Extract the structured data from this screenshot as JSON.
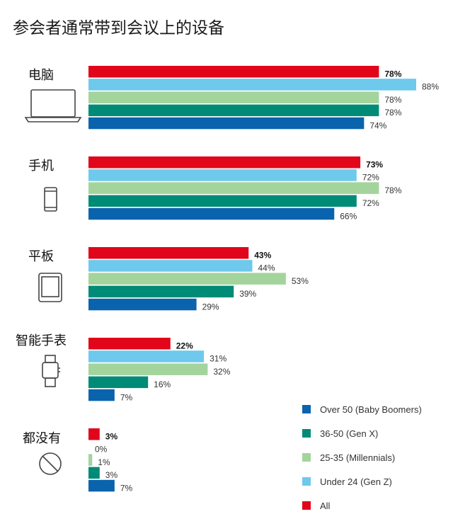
{
  "title": "参会者通常带到会议上的设备",
  "chart_data": {
    "type": "bar",
    "orientation": "horizontal",
    "title": "参会者通常带到会议上的设备",
    "categories": [
      "电脑",
      "手机",
      "平板",
      "智能手表",
      "都没有"
    ],
    "xlim": [
      0,
      100
    ],
    "grid": false,
    "legend_position": "bottom-right",
    "series": [
      {
        "name": "All",
        "color": "#e1061a",
        "values": [
          78,
          73,
          43,
          22,
          3
        ],
        "labels": [
          "78%",
          "73%",
          "43%",
          "22%",
          "3%"
        ],
        "emphasis": true
      },
      {
        "name": "Under 24 (Gen Z)",
        "color": "#6ec9ec",
        "values": [
          88,
          72,
          44,
          31,
          0
        ],
        "labels": [
          "88%",
          "72%",
          "44%",
          "31%",
          "0%"
        ]
      },
      {
        "name": "25-35 (Millennials)",
        "color": "#a3d49c",
        "values": [
          78,
          78,
          53,
          32,
          1
        ],
        "labels": [
          "78%",
          "78%",
          "53%",
          "32%",
          "1%"
        ]
      },
      {
        "name": "36-50 (Gen X)",
        "color": "#008b76",
        "values": [
          78,
          72,
          39,
          16,
          3
        ],
        "labels": [
          "78%",
          "72%",
          "39%",
          "16%",
          "3%"
        ]
      },
      {
        "name": "Over 50 (Baby Boomers)",
        "color": "#0a63ad",
        "values": [
          74,
          66,
          29,
          7,
          7
        ],
        "labels": [
          "74%",
          "66%",
          "29%",
          "7%",
          "7%"
        ]
      }
    ],
    "legend_order": [
      "Over 50 (Baby Boomers)",
      "36-50 (Gen X)",
      "25-35 (Millennials)",
      "Under 24 (Gen Z)",
      "All"
    ],
    "icons": [
      "laptop-icon",
      "phone-icon",
      "tablet-icon",
      "smartwatch-icon",
      "none-icon"
    ]
  }
}
